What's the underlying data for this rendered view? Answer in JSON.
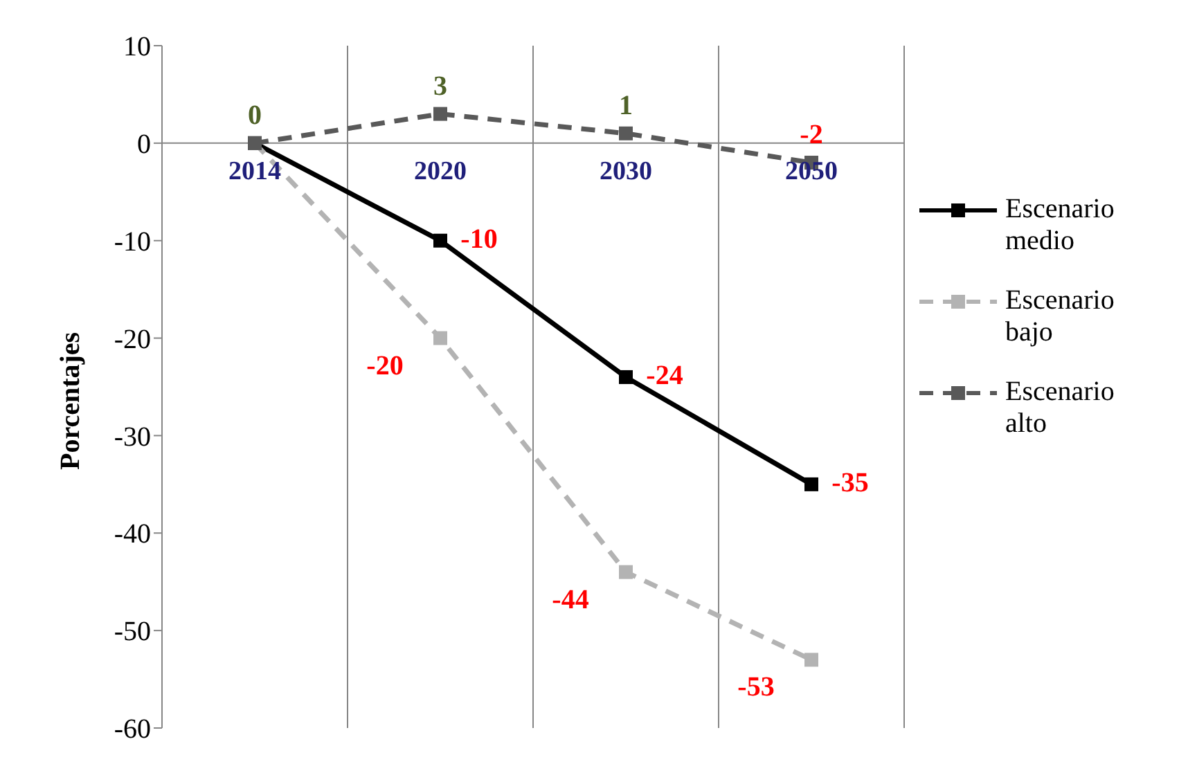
{
  "chart_data": {
    "type": "line",
    "ylabel": "Porcentajes",
    "categories": [
      "2014",
      "2020",
      "2030",
      "2050"
    ],
    "series": [
      {
        "name": "Escenario medio",
        "color": "#000000",
        "line_style": "solid",
        "values": [
          0,
          -10,
          -24,
          -35
        ],
        "value_labels": [
          null,
          "-10",
          "-24",
          "-35"
        ]
      },
      {
        "name": "Escenario bajo",
        "color": "#b3b3b3",
        "line_style": "dashed",
        "values": [
          0,
          -20,
          -44,
          -53
        ],
        "value_labels": [
          null,
          "-20",
          "-44",
          "-53"
        ]
      },
      {
        "name": "Escenario alto",
        "color": "#595959",
        "line_style": "dashed",
        "values": [
          0,
          3,
          1,
          -2
        ],
        "value_labels": [
          "0",
          "3",
          "1",
          "-2"
        ]
      }
    ],
    "ylim": [
      -60,
      10
    ],
    "yticks": [
      -60,
      -50,
      -40,
      -30,
      -20,
      -10,
      0,
      10
    ],
    "grid": "x",
    "legend": "right",
    "marker": "square"
  }
}
